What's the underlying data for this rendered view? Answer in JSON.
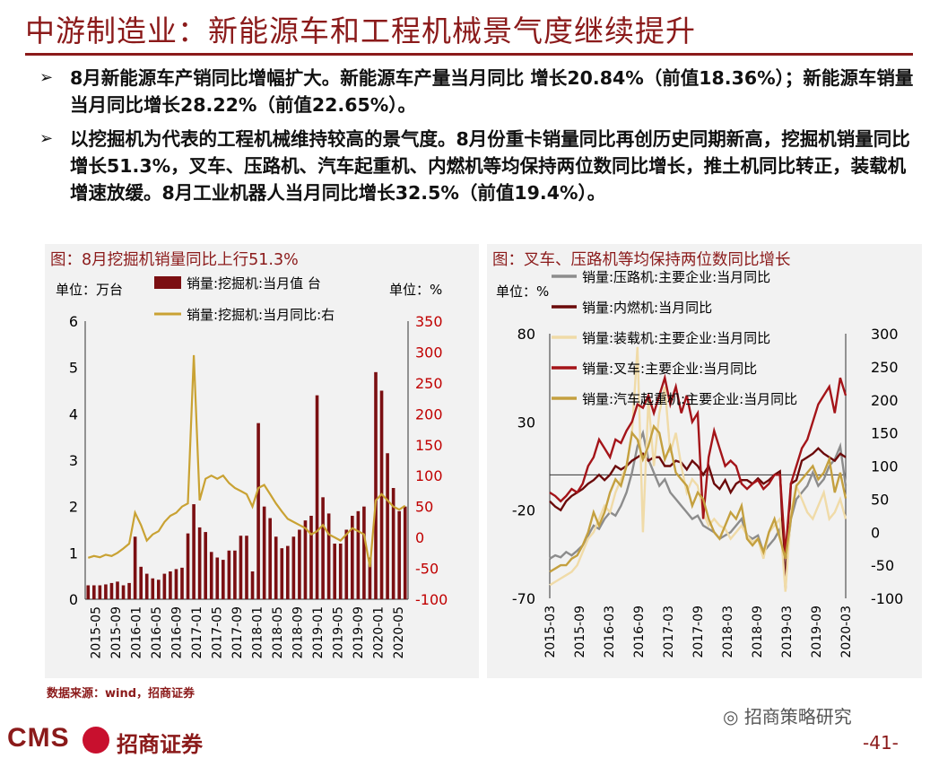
{
  "title": "中游制造业：新能源车和工程机械景气度继续提升",
  "bullets": [
    "8月新能源车产销同比增幅扩大。新能源车产量当月同比  增长20.84%（前值18.36%）；新能源车销量当月同比增长28.22%（前值22.65%）。",
    "以挖掘机为代表的工程机械维持较高的景气度。8月份重卡销量同比再创历史同期新高，挖掘机销量同比增长51.3%，叉车、压路机、汽车起重机、内燃机等均保持两位数同比增长，推土机同比转正，装载机增速放缓。8月工业机器人当月同比增长32.5%（前值19.4%）。"
  ],
  "bullet_marker": "➢",
  "source": "数据来源：wind，招商证券",
  "footer": {
    "logo": "CMS",
    "company": "招商证券",
    "wechat": "招商策略研究",
    "page": "-41-"
  },
  "colors": {
    "brand": "#8B1A1A",
    "panel_bg": "#f2f2f2"
  },
  "chart_data": [
    {
      "type": "bar",
      "title": "图：8月挖掘机销量同比上行51.3%",
      "left_unit": "单位：万台",
      "right_unit": "单位：%",
      "x_ticks": [
        "2015-05",
        "2015-09",
        "2016-01",
        "2016-05",
        "2016-09",
        "2017-01",
        "2017-05",
        "2017-09",
        "2018-01",
        "2018-05",
        "2018-09",
        "2019-01",
        "2019-05",
        "2019-09",
        "2020-01",
        "2020-05"
      ],
      "ylim": [
        0,
        6
      ],
      "y_ticks": [
        0,
        1,
        2,
        3,
        4,
        5,
        6
      ],
      "y2lim": [
        -100,
        350
      ],
      "y2_ticks": [
        -100,
        -50,
        0,
        50,
        100,
        150,
        200,
        250,
        300,
        350
      ],
      "series": [
        {
          "name": "销量:挖掘机:当月值 台",
          "kind": "bar",
          "color": "#7B0F12",
          "values": [
            0.3,
            0.3,
            0.3,
            0.32,
            0.35,
            0.38,
            0.3,
            0.35,
            1.35,
            0.7,
            0.55,
            0.45,
            0.42,
            0.55,
            0.6,
            0.65,
            0.68,
            1.42,
            2.05,
            1.55,
            1.45,
            1.02,
            0.9,
            0.85,
            1.05,
            1.05,
            1.37,
            1.37,
            0.6,
            3.8,
            2.0,
            1.75,
            1.35,
            1.1,
            1.15,
            1.35,
            1.5,
            1.7,
            1.8,
            4.4,
            2.2,
            1.85,
            1.2,
            1.2,
            1.5,
            1.8,
            1.9,
            2.0,
            0.9,
            4.9,
            4.5,
            3.15,
            2.4,
            1.9,
            2.0
          ]
        },
        {
          "name": "销量:挖掘机:当月同比:右",
          "kind": "line",
          "color": "#C9A233",
          "values": [
            -33,
            -30,
            -32,
            -28,
            -30,
            -25,
            -18,
            -10,
            40,
            20,
            -5,
            5,
            10,
            25,
            35,
            40,
            50,
            55,
            295,
            60,
            95,
            100,
            95,
            100,
            88,
            80,
            75,
            70,
            50,
            80,
            85,
            70,
            55,
            42,
            30,
            25,
            20,
            15,
            5,
            10,
            20,
            5,
            0,
            -5,
            5,
            15,
            10,
            5,
            -48,
            60,
            70,
            60,
            50,
            45,
            51.3
          ]
        }
      ]
    },
    {
      "type": "line",
      "title": "图：叉车、压路机等均保持两位数同比增长",
      "left_unit": "单位：%",
      "x_ticks": [
        "2015-03",
        "2015-09",
        "2016-03",
        "2016-09",
        "2017-03",
        "2017-09",
        "2018-03",
        "2018-09",
        "2019-03",
        "2019-09",
        "2020-03"
      ],
      "ylim": [
        -70,
        80
      ],
      "y_ticks": [
        -70,
        -20,
        30,
        80
      ],
      "y2lim": [
        -100,
        300
      ],
      "y2_ticks": [
        -100,
        -50,
        0,
        50,
        100,
        150,
        200,
        250,
        300
      ],
      "series": [
        {
          "name": "销量:压路机:主要企业:当月同比",
          "axis": "right",
          "color": "#8C8C8C",
          "values": [
            -40,
            -35,
            -38,
            -30,
            -35,
            -28,
            -20,
            -5,
            10,
            5,
            20,
            30,
            25,
            40,
            60,
            90,
            130,
            150,
            110,
            90,
            70,
            80,
            60,
            50,
            40,
            30,
            20,
            25,
            10,
            5,
            0,
            -10,
            -5,
            0,
            10,
            20,
            -5,
            -10,
            -5,
            -30,
            -20,
            -10,
            5,
            -60,
            20,
            50,
            60,
            70,
            90,
            70,
            80,
            100,
            110,
            130,
            70
          ]
        },
        {
          "name": "销量:内燃机:当月同比",
          "axis": "left",
          "color": "#6B0A0A",
          "values": [
            -15,
            -18,
            -20,
            -15,
            -12,
            -10,
            -8,
            -5,
            -3,
            0,
            -3,
            0,
            5,
            3,
            5,
            8,
            10,
            12,
            8,
            10,
            10,
            5,
            5,
            8,
            7,
            3,
            8,
            5,
            0,
            5,
            -5,
            -8,
            -3,
            -10,
            -5,
            -3,
            -3,
            -5,
            -2,
            -5,
            -3,
            0,
            2,
            -65,
            -5,
            -3,
            8,
            10,
            12,
            15,
            12,
            10,
            8,
            12,
            10
          ]
        },
        {
          "name": "销量:装载机:主要企业:当月同比",
          "axis": "right",
          "color": "#F0DBA8",
          "values": [
            -80,
            -75,
            -70,
            -65,
            -60,
            -50,
            -30,
            -10,
            0,
            20,
            40,
            30,
            60,
            80,
            100,
            150,
            280,
            0,
            200,
            100,
            180,
            220,
            120,
            150,
            100,
            60,
            80,
            70,
            30,
            10,
            20,
            10,
            5,
            -10,
            0,
            10,
            -5,
            -15,
            -10,
            -40,
            0,
            10,
            20,
            -90,
            30,
            70,
            50,
            30,
            20,
            40,
            60,
            20,
            30,
            50,
            20
          ]
        },
        {
          "name": "销量:叉车:主要企业:当月同比",
          "axis": "left",
          "color": "#A41419",
          "values": [
            -10,
            -12,
            -15,
            -12,
            -8,
            -10,
            -5,
            5,
            10,
            20,
            15,
            10,
            20,
            18,
            25,
            30,
            40,
            38,
            45,
            35,
            45,
            55,
            40,
            50,
            35,
            45,
            30,
            35,
            -25,
            10,
            25,
            15,
            5,
            8,
            5,
            -5,
            -8,
            -5,
            -3,
            -8,
            -5,
            0,
            0,
            -45,
            -5,
            5,
            15,
            20,
            30,
            40,
            45,
            50,
            35,
            55,
            45
          ]
        },
        {
          "name": "销量:汽车起重机:主要企业:当月同比",
          "axis": "right",
          "color": "#C4A03F",
          "values": [
            -60,
            -55,
            -50,
            -50,
            -40,
            -35,
            -20,
            0,
            30,
            10,
            30,
            60,
            80,
            70,
            100,
            150,
            140,
            110,
            130,
            160,
            150,
            110,
            130,
            90,
            80,
            70,
            40,
            60,
            50,
            20,
            0,
            -10,
            10,
            30,
            20,
            40,
            -10,
            -20,
            -10,
            -30,
            0,
            20,
            -10,
            -40,
            20,
            70,
            80,
            90,
            100,
            80,
            90,
            110,
            60,
            90,
            51
          ]
        }
      ]
    }
  ]
}
